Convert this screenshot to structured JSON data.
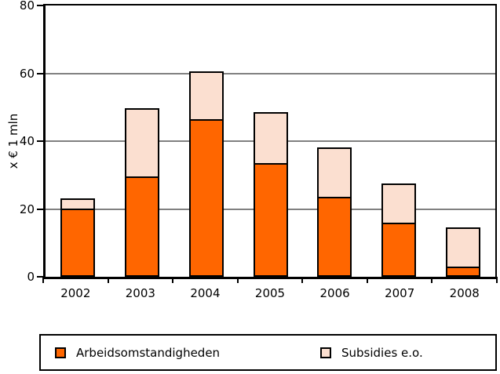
{
  "chart_data": {
    "type": "bar",
    "stacked": true,
    "title": "",
    "categories": [
      "2002",
      "2003",
      "2004",
      "2005",
      "2006",
      "2007",
      "2008"
    ],
    "series": [
      {
        "name": "Arbeidsomstandigheden",
        "color": "#FF6600",
        "values": [
          20,
          29.5,
          46.5,
          33.5,
          23.5,
          16,
          3
        ]
      },
      {
        "name": "Subsidies e.o.",
        "color": "#FBDFD0",
        "values": [
          3,
          20,
          14,
          15,
          14.5,
          11.5,
          11.5
        ]
      }
    ],
    "totals": [
      23,
      49.5,
      60.5,
      48.5,
      38,
      27.5,
      14.5
    ],
    "xlabel": "",
    "ylabel": "x € 1 mln",
    "ylim": [
      0,
      80
    ],
    "yticks": [
      0,
      20,
      40,
      60,
      80
    ],
    "grid": true,
    "gridline_values": [
      20,
      40,
      60
    ],
    "legend_position": "bottom"
  },
  "legend": {
    "entries": [
      {
        "label": "Arbeidsomstandigheden",
        "swatch_color": "#FF6600"
      },
      {
        "label": "Subsidies e.o.",
        "swatch_color": "#FBDFD0"
      }
    ]
  },
  "colors": {
    "bar_border": "#000000",
    "axis": "#000000",
    "gridline": "#808080",
    "background": "#FFFFFF"
  }
}
